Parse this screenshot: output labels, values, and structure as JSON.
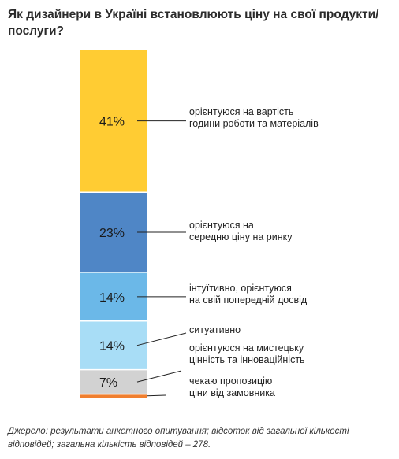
{
  "title": "Як дизайнери в Україні встановлюють ціну на свої продукти/послуги?",
  "source": "Джерело: результати анкетного опитування; відсоток від загальної кількості відповідей; загальна кількість відповідей – 278.",
  "chart_data": {
    "type": "bar",
    "stacked": true,
    "orientation": "vertical",
    "unit": "%",
    "ylim": [
      0,
      100
    ],
    "grid": false,
    "legend": "none",
    "segments": [
      {
        "label_lines": [
          "орієнтуюся на вартість",
          "години роботи та матеріалів"
        ],
        "value": 41,
        "value_label": "41%",
        "color": "#FFCC33"
      },
      {
        "label_lines": [
          "орієнтуюся на",
          "середню ціну на ринку"
        ],
        "value": 23,
        "value_label": "23%",
        "color": "#4F86C6"
      },
      {
        "label_lines": [
          "інтуїтивно, орієнтуюся",
          "на свій попередній досвід"
        ],
        "value": 14,
        "value_label": "14%",
        "color": "#6BB8E8"
      },
      {
        "label_lines": [
          "ситуативно"
        ],
        "value": 14,
        "value_label": "14%",
        "color": "#A8DDF6"
      },
      {
        "label_lines": [
          "орієнтуюся на мистецьку",
          "цінність та інноваційність"
        ],
        "value": 7,
        "value_label": "7%",
        "color": "#D2D2D2"
      },
      {
        "label_lines": [
          "чекаю пропозицію",
          "ціни від замовника"
        ],
        "value": 1,
        "value_label": "",
        "color": "#F07F2F"
      }
    ]
  }
}
